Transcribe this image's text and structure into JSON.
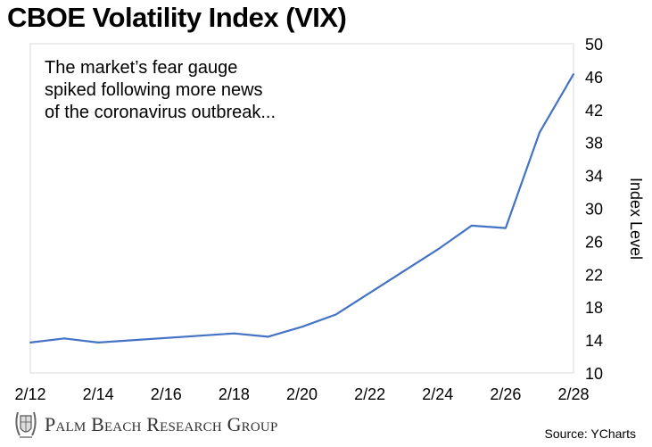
{
  "chart_data": {
    "type": "line",
    "title": "CBOE Volatility Index (VIX)",
    "annotation": "The market’s fear gauge spiked following more news of the coronavirus outbreak...",
    "xlabel": "",
    "ylabel": "Index Level",
    "y_axis_side": "right",
    "ylim": [
      10,
      50
    ],
    "yticks": [
      "10",
      "14",
      "18",
      "22",
      "26",
      "30",
      "34",
      "38",
      "42",
      "46",
      "50"
    ],
    "xticks": [
      "2/12",
      "2/14",
      "2/16",
      "2/18",
      "2/20",
      "2/22",
      "2/24",
      "2/26",
      "2/28"
    ],
    "grid": false,
    "line_color": "#4472C4",
    "series": [
      {
        "x": [
          "2/12",
          "2/13",
          "2/14",
          "2/18",
          "2/19",
          "2/20",
          "2/21",
          "2/24",
          "2/25",
          "2/26",
          "2/27",
          "2/28"
        ],
        "values": [
          13.7,
          14.2,
          13.7,
          14.8,
          14.4,
          15.6,
          17.1,
          25.0,
          27.9,
          27.6,
          39.2,
          46.3
        ]
      }
    ]
  },
  "branding": {
    "logo_text": "Palm Beach Research Group"
  },
  "source": "Source: YCharts"
}
